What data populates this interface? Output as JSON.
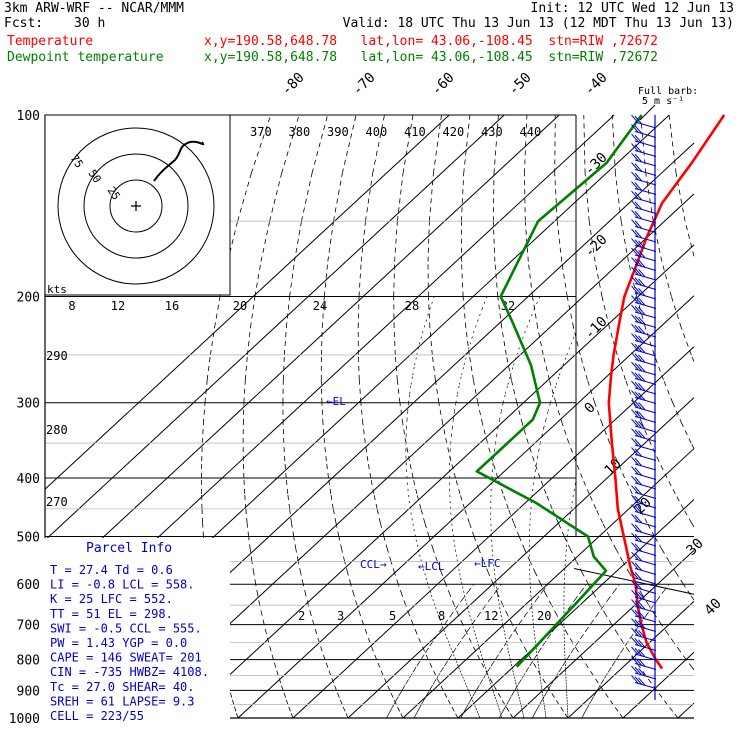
{
  "header": {
    "model": "3km ARW-WRF -- NCAR/MMM",
    "init": "Init: 12 UTC Wed 12 Jun 13",
    "fcst_label": "Fcst:",
    "fcst_value": "30 h",
    "valid": "Valid: 18 UTC Thu 13 Jun 13 (12 MDT Thu 13 Jun 13)",
    "temp_label": "Temperature",
    "temp_info": "x,y=190.58,648.78   lat,lon= 43.06,-108.45  stn=RIW ,72672",
    "dew_label": "Dewpoint temperature",
    "dew_info": "x,y=190.58,648.78   lat,lon= 43.06,-108.45  stn=RIW ,72672"
  },
  "colors": {
    "temperature": "#ff0000",
    "dewpoint": "#008000",
    "info": "#0000cc",
    "wind": "#0000cc"
  },
  "hodograph": {
    "units": "kts",
    "ring_labels": [
      "75",
      "50",
      "25"
    ],
    "x_ticks": [
      "8",
      "12",
      "16",
      "20",
      "24",
      "28",
      "32"
    ]
  },
  "wind_legend": {
    "line1": "Full barb:",
    "line2": "5 m s⁻¹"
  },
  "theta_labels": [
    "370",
    "380",
    "390",
    "400",
    "410",
    "420",
    "430",
    "440"
  ],
  "theta_left_labels": [
    "290",
    "280",
    "270"
  ],
  "mixing_ratio_labels": [
    "2",
    "3",
    "5",
    "8",
    "12",
    "20"
  ],
  "annotations": {
    "el": "←EL",
    "lcl": "←LCL",
    "lfc": "←LFC",
    "ccl": "CCL→"
  },
  "parcel_info": {
    "title": "Parcel Info",
    "rows": [
      "T    =   27.4  Td  =   0.6",
      "LI   =   -0.8  LCL =  558.",
      "K    =     25  LFC =  552.",
      "TT   =     51  EL  =  298.",
      "SWI  =   -0.5  CCL =  555.",
      "PW   =   1.43  YGP =   0.0",
      "CAPE =    146  SWEAT=  201",
      "CIN  =   -735  HWBZ= 4108.",
      "Tc   =   27.0  SHEAR=  40.",
      "SREH =     61  LAPSE=  9.3",
      "CELL = 223/55"
    ]
  },
  "chart_data": {
    "type": "line",
    "title": "",
    "xlabel": "",
    "ylabel": "",
    "y_scale": "log-pressure",
    "ylim": [
      1000,
      100
    ],
    "pressure_levels": [
      "100",
      "200",
      "300",
      "400",
      "500",
      "600",
      "700",
      "800",
      "900",
      "1000"
    ],
    "isotherm_labels": [
      "40",
      "30",
      "20",
      "10",
      "0",
      "-10",
      "-20",
      "-30",
      "-40",
      "-50",
      "-60",
      "-70",
      "-80"
    ],
    "series": [
      {
        "name": "Temperature",
        "color": "#ff0000",
        "points": [
          [
            828,
            27.4
          ],
          [
            800,
            24.5
          ],
          [
            750,
            19.5
          ],
          [
            700,
            15.0
          ],
          [
            650,
            10.5
          ],
          [
            600,
            6.0
          ],
          [
            560,
            1.5
          ],
          [
            500,
            -5.5
          ],
          [
            450,
            -12.0
          ],
          [
            400,
            -18.5
          ],
          [
            350,
            -26.0
          ],
          [
            300,
            -34.5
          ],
          [
            270,
            -39.5
          ],
          [
            250,
            -43.0
          ],
          [
            220,
            -48.5
          ],
          [
            200,
            -52.5
          ],
          [
            180,
            -56.0
          ],
          [
            160,
            -60.0
          ],
          [
            140,
            -64.0
          ],
          [
            120,
            -66.5
          ],
          [
            100,
            -70.0
          ]
        ]
      },
      {
        "name": "Dewpoint temperature",
        "color": "#008000",
        "points": [
          [
            822,
            0.6
          ],
          [
            750,
            0.0
          ],
          [
            700,
            -0.5
          ],
          [
            650,
            -1.0
          ],
          [
            570,
            -2.0
          ],
          [
            540,
            -7.0
          ],
          [
            500,
            -12.0
          ],
          [
            440,
            -28.0
          ],
          [
            390,
            -45.0
          ],
          [
            360,
            -45.0
          ],
          [
            320,
            -45.0
          ],
          [
            300,
            -47.0
          ],
          [
            260,
            -56.0
          ],
          [
            220,
            -68.0
          ],
          [
            200,
            -75.0
          ],
          [
            150,
            -83.0
          ],
          [
            120,
            -82.0
          ],
          [
            100,
            -85.0
          ]
        ]
      }
    ]
  }
}
